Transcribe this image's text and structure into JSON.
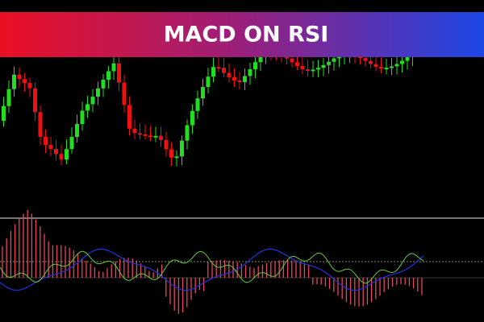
{
  "banner": {
    "title": "MACD ON RSI"
  }
}
